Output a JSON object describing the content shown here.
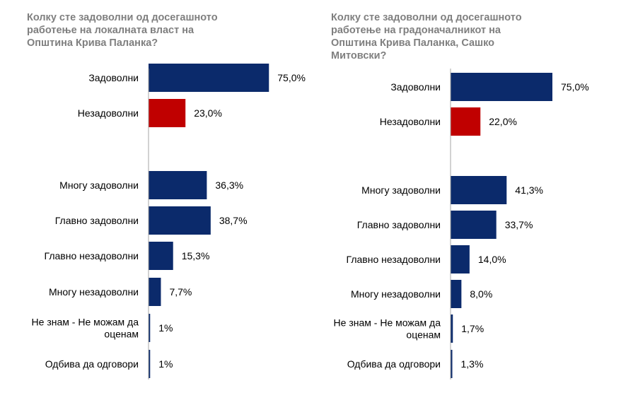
{
  "chart_data": [
    {
      "type": "bar",
      "orientation": "horizontal",
      "title": "Колку сте задоволни од досегашното\nработење на локалната власт на\nОпштина  Крива Паланка?",
      "categories": [
        "Задоволни",
        "Незадоволни",
        "Многу задоволни",
        "Главно задоволни",
        "Главно незадоволни",
        "Многу незадоволни",
        "Не знам - Не можам да\nоценам",
        "Одбива да одговори"
      ],
      "values": [
        75.0,
        23.0,
        36.3,
        38.7,
        15.3,
        7.7,
        1,
        1
      ],
      "value_labels": [
        "75,0%",
        "23,0%",
        "36,3%",
        "38,7%",
        "15,3%",
        "7,7%",
        "1%",
        "1%"
      ],
      "colors": [
        "#0b2a6b",
        "#c00000",
        "#0b2a6b",
        "#0b2a6b",
        "#0b2a6b",
        "#0b2a6b",
        "#0b2a6b",
        "#0b2a6b"
      ],
      "xlim": [
        0,
        100
      ]
    },
    {
      "type": "bar",
      "orientation": "horizontal",
      "title": "Колку сте задоволни од досегашното\nработење на градоначалникот на\nОпштина Крива Паланка, Сашко\nМитовски?",
      "categories": [
        "Задоволни",
        "Незадоволни",
        "Многу задоволни",
        "Главно задоволни",
        "Главно незадоволни",
        "Многу незадоволни",
        "Не знам - Не можам да\nоценам",
        "Одбива да одговори"
      ],
      "values": [
        75.0,
        22.0,
        41.3,
        33.7,
        14.0,
        8.0,
        1.7,
        1.3
      ],
      "value_labels": [
        "75,0%",
        "22,0%",
        "41,3%",
        "33,7%",
        "14,0%",
        "8,0%",
        "1,7%",
        "1,3%"
      ],
      "colors": [
        "#0b2a6b",
        "#c00000",
        "#0b2a6b",
        "#0b2a6b",
        "#0b2a6b",
        "#0b2a6b",
        "#0b2a6b",
        "#0b2a6b"
      ],
      "xlim": [
        0,
        100
      ]
    }
  ]
}
